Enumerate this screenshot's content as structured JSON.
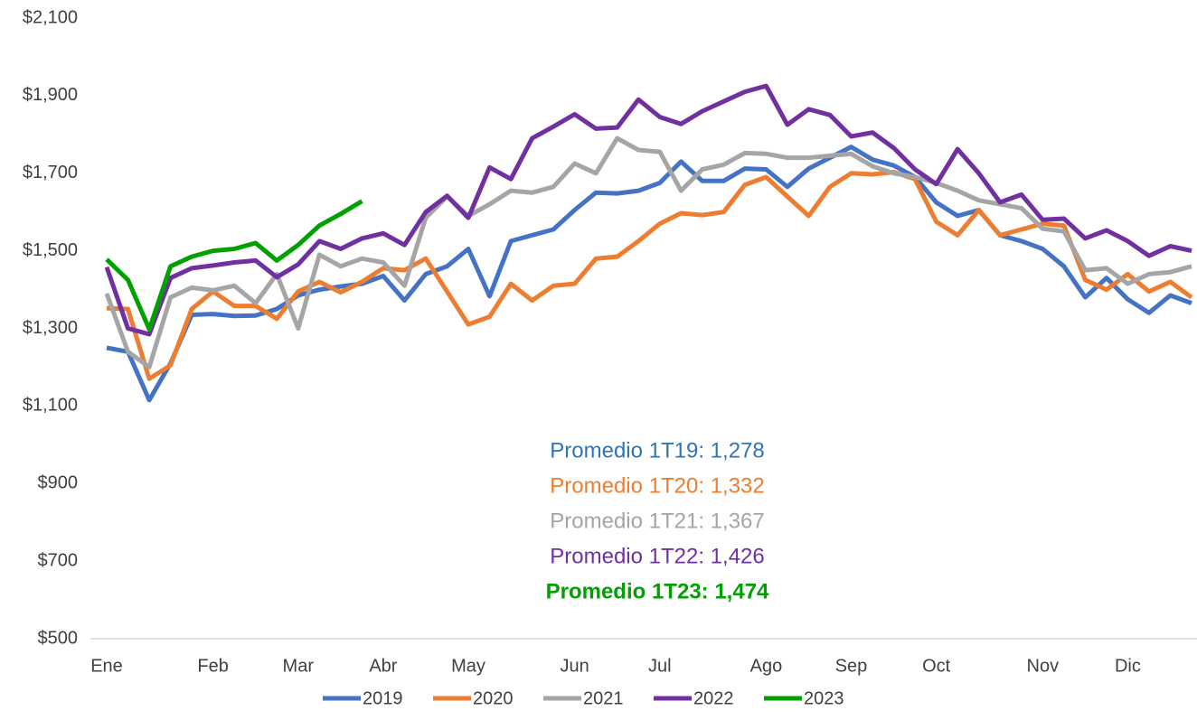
{
  "chart_data": {
    "type": "line",
    "categories": [
      "Ene",
      null,
      null,
      null,
      null,
      "Feb",
      null,
      null,
      null,
      "Mar",
      null,
      null,
      null,
      "Abr",
      null,
      null,
      null,
      "May",
      null,
      null,
      null,
      null,
      "Jun",
      null,
      null,
      null,
      "Jul",
      null,
      null,
      null,
      null,
      "Ago",
      null,
      null,
      null,
      "Sep",
      null,
      null,
      null,
      "Oct",
      null,
      null,
      null,
      null,
      "Nov",
      null,
      null,
      null,
      "Dic",
      null,
      null,
      null
    ],
    "ylim": [
      500,
      2100
    ],
    "yticks": [
      {
        "value": 500,
        "label": "$500"
      },
      {
        "value": 700,
        "label": "$700"
      },
      {
        "value": 900,
        "label": "$900"
      },
      {
        "value": 1100,
        "label": "$1,100"
      },
      {
        "value": 1300,
        "label": "$1,300"
      },
      {
        "value": 1500,
        "label": "$1,500"
      },
      {
        "value": 1700,
        "label": "$1,700"
      },
      {
        "value": 1900,
        "label": "$1,900"
      },
      {
        "value": 2100,
        "label": "$2,100"
      }
    ],
    "grid": false,
    "legend": "bottom",
    "series": [
      {
        "name": "2019",
        "color": "#4472c4",
        "values": [
          1250,
          1240,
          1115,
          1210,
          1335,
          1337,
          1332,
          1333,
          1350,
          1385,
          1400,
          1408,
          1415,
          1435,
          1372,
          1440,
          1460,
          1505,
          1383,
          1525,
          1540,
          1555,
          1605,
          1650,
          1648,
          1655,
          1675,
          1730,
          1680,
          1680,
          1712,
          1710,
          1665,
          1712,
          1740,
          1768,
          1735,
          1720,
          1690,
          1625,
          1590,
          1605,
          1540,
          1525,
          1505,
          1460,
          1380,
          1430,
          1375,
          1340,
          1385,
          1365
        ]
      },
      {
        "name": "2020",
        "color": "#ed7d31",
        "values": [
          1352,
          1350,
          1170,
          1205,
          1350,
          1395,
          1358,
          1358,
          1325,
          1395,
          1420,
          1393,
          1420,
          1455,
          1450,
          1480,
          1395,
          1310,
          1330,
          1415,
          1372,
          1410,
          1415,
          1480,
          1485,
          1525,
          1570,
          1597,
          1592,
          1600,
          1670,
          1690,
          1640,
          1590,
          1665,
          1700,
          1697,
          1703,
          1685,
          1575,
          1540,
          1605,
          1540,
          1555,
          1570,
          1565,
          1425,
          1400,
          1440,
          1395,
          1420,
          1380
        ]
      },
      {
        "name": "2021",
        "color": "#a5a5a5",
        "values": [
          1390,
          1240,
          1200,
          1380,
          1405,
          1398,
          1410,
          1365,
          1440,
          1300,
          1490,
          1460,
          1480,
          1470,
          1410,
          1585,
          1640,
          1590,
          1620,
          1655,
          1650,
          1665,
          1725,
          1700,
          1790,
          1760,
          1755,
          1655,
          1710,
          1722,
          1752,
          1750,
          1740,
          1740,
          1745,
          1750,
          1718,
          1700,
          1690,
          1675,
          1655,
          1630,
          1620,
          1610,
          1557,
          1550,
          1450,
          1455,
          1415,
          1440,
          1445,
          1460
        ]
      },
      {
        "name": "2022",
        "color": "#7030a0",
        "values": [
          1458,
          1300,
          1285,
          1430,
          1455,
          1462,
          1470,
          1475,
          1432,
          1465,
          1525,
          1505,
          1532,
          1545,
          1515,
          1600,
          1642,
          1585,
          1715,
          1685,
          1790,
          1820,
          1852,
          1815,
          1818,
          1890,
          1845,
          1827,
          1860,
          1885,
          1910,
          1925,
          1825,
          1865,
          1850,
          1795,
          1805,
          1765,
          1710,
          1672,
          1762,
          1700,
          1625,
          1645,
          1580,
          1583,
          1532,
          1553,
          1525,
          1487,
          1512,
          1500
        ]
      },
      {
        "name": "2023",
        "color": "#00a000",
        "values": [
          1478,
          1425,
          1298,
          1460,
          1485,
          1500,
          1505,
          1520,
          1475,
          1515,
          1565,
          1595,
          1628,
          null,
          null,
          null,
          null,
          null,
          null,
          null,
          null,
          null,
          null,
          null,
          null,
          null,
          null,
          null,
          null,
          null,
          null,
          null,
          null,
          null,
          null,
          null,
          null,
          null,
          null,
          null,
          null,
          null,
          null,
          null,
          null,
          null,
          null,
          null,
          null,
          null,
          null,
          null
        ]
      }
    ],
    "annotations": [
      {
        "text": "Promedio 1T19: 1,278",
        "color": "#2e75b6",
        "bold": false
      },
      {
        "text": "Promedio 1T20: 1,332",
        "color": "#ed7d31",
        "bold": false
      },
      {
        "text": "Promedio 1T21: 1,367",
        "color": "#a5a5a5",
        "bold": false
      },
      {
        "text": "Promedio 1T22: 1,426",
        "color": "#7030a0",
        "bold": false
      },
      {
        "text": "Promedio 1T23: 1,474",
        "color": "#00a000",
        "bold": true
      }
    ]
  }
}
